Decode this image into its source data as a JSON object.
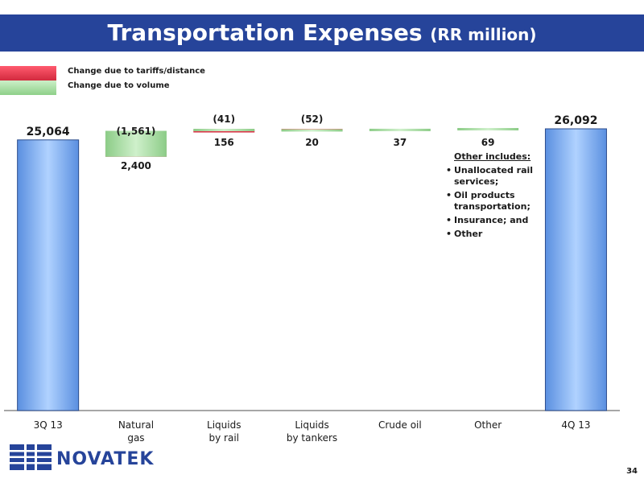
{
  "header": {
    "title": "Transportation Expenses",
    "unit": "(RR million)"
  },
  "legend": [
    {
      "label": "Change due to tariffs/distance",
      "color": "#e23a4e"
    },
    {
      "label": "Change due to volume",
      "color": "#9fdb9a"
    }
  ],
  "chart_data": {
    "type": "bar",
    "subtype": "waterfall",
    "categories": [
      "3Q 13",
      "Natural gas",
      "Liquids by rail",
      "Liquids by tankers",
      "Crude oil",
      "Other",
      "4Q 13"
    ],
    "category_lines": [
      [
        "3Q 13"
      ],
      [
        "Natural",
        "gas"
      ],
      [
        "Liquids",
        "by rail"
      ],
      [
        "Liquids",
        "by tankers"
      ],
      [
        "Crude oil"
      ],
      [
        "Other"
      ],
      [
        "4Q 13"
      ]
    ],
    "start": {
      "label": "25,064",
      "value": 25064
    },
    "end": {
      "label": "26,092",
      "value": 26092
    },
    "series": [
      {
        "name": "Change due to tariffs/distance",
        "values": [
          null,
          -1561,
          -41,
          -52,
          null,
          null,
          null
        ],
        "labels": [
          null,
          "(1,561)",
          "(41)",
          "(52)",
          null,
          null,
          null
        ]
      },
      {
        "name": "Change due to volume",
        "values": [
          null,
          2400,
          156,
          20,
          37,
          69,
          null
        ],
        "labels": [
          null,
          "2,400",
          "156",
          "20",
          "37",
          "69",
          null
        ]
      }
    ],
    "colors": {
      "total": "#7aaaf0",
      "tariff": "#e23a4e",
      "volume": "#9fdb9a",
      "axis": "#8a8a8a"
    }
  },
  "note": {
    "title": "Other includes:",
    "items": [
      "Unallocated rail services;",
      "Oil products transportation;",
      "Insurance; and",
      "Other"
    ]
  },
  "logo": {
    "text": "NOVATEK"
  },
  "page_number": "34"
}
